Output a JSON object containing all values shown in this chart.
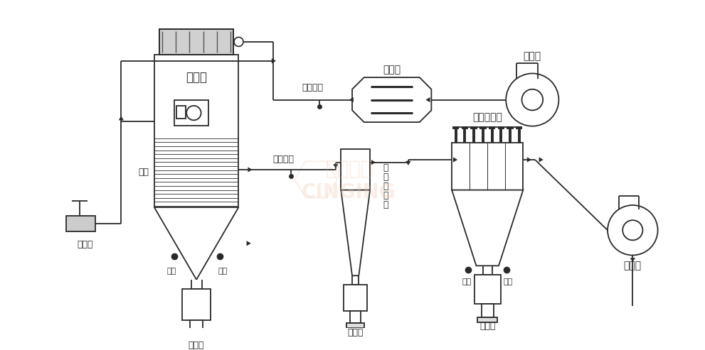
{
  "bg_color": "#ffffff",
  "lc": "#2a2a2a",
  "lw": 1.3,
  "labels": {
    "pump": "蠕动泵",
    "tower": "雾化塔",
    "heater": "加热器",
    "blower": "送风机",
    "cyclone": "旋\n风\n分\n离\n器",
    "bag_filter": "布袋除尘器",
    "exhaust": "引风机",
    "inlet_temp": "进风温度",
    "outlet_temp": "出风温度",
    "gas_sweep": "气扫",
    "vib": "振打",
    "collector": "收料瓶"
  }
}
